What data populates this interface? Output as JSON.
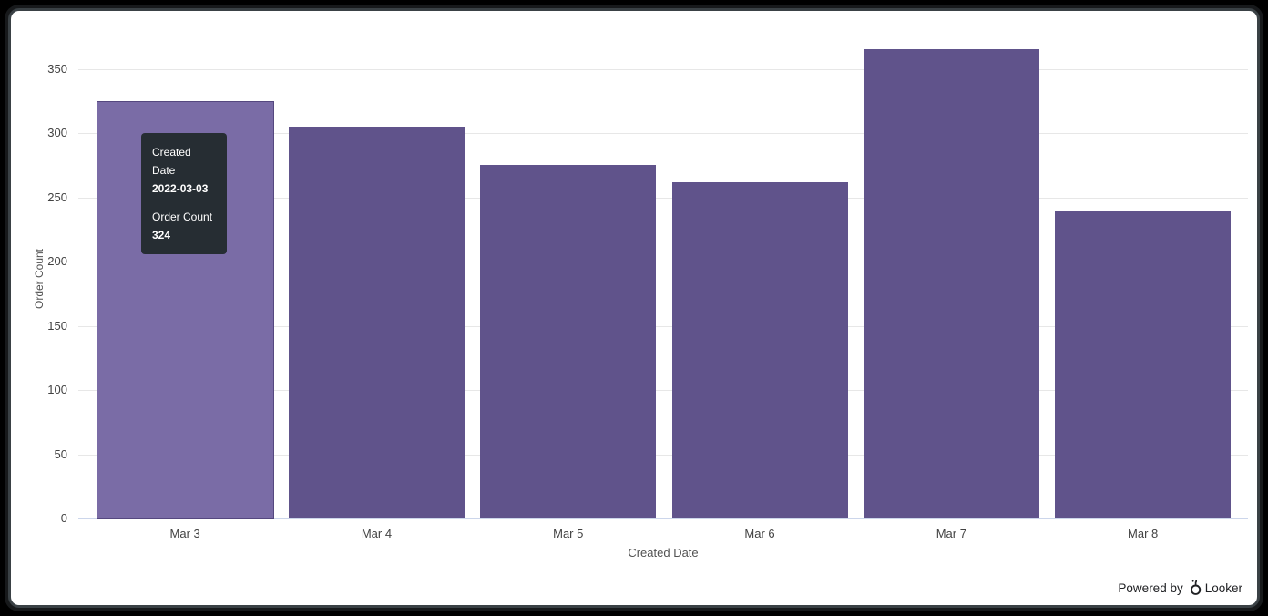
{
  "chart_data": {
    "type": "bar",
    "title": "",
    "categories": [
      "Mar 3",
      "Mar 4",
      "Mar 5",
      "Mar 6",
      "Mar 7",
      "Mar 8"
    ],
    "values": [
      324,
      305,
      275,
      262,
      365,
      239
    ],
    "xlabel": "Created Date",
    "ylabel": "Order Count",
    "ylim": [
      0,
      350
    ],
    "yticks": [
      0,
      50,
      100,
      150,
      200,
      250,
      300,
      350
    ],
    "grid": true,
    "legend_position": "none",
    "bar_color": "#60538b",
    "hover_bar_color": "#7a6ca6",
    "hover_index": 0,
    "gridline_color": "#e7e7e7",
    "axis_line_color": "#ccd6eb"
  },
  "tooltip": {
    "field1_label": "Created Date",
    "field1_value": "2022-03-03",
    "field2_label": "Order Count",
    "field2_value": "324",
    "bg_color": "#262d33"
  },
  "footer": {
    "powered_by": "Powered by",
    "brand": "Looker"
  }
}
